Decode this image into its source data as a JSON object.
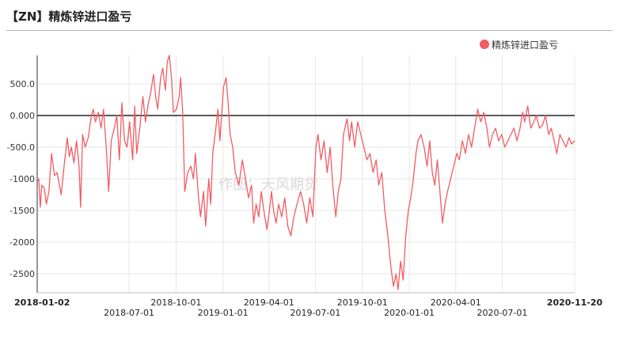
{
  "title": "【ZN】精炼锌进口盈亏",
  "watermark": "作图：天风期货",
  "chart_data": {
    "type": "line",
    "series": [
      {
        "name": "精炼锌进口盈亏",
        "color": "#f25c63",
        "points": [
          [
            "2018-01-02",
            -1050
          ],
          [
            "2018-01-05",
            -1000
          ],
          [
            "2018-01-08",
            -1450
          ],
          [
            "2018-01-11",
            -1100
          ],
          [
            "2018-01-16",
            -1150
          ],
          [
            "2018-01-20",
            -1400
          ],
          [
            "2018-01-25",
            -1200
          ],
          [
            "2018-01-30",
            -600
          ],
          [
            "2018-02-05",
            -950
          ],
          [
            "2018-02-10",
            -900
          ],
          [
            "2018-02-18",
            -1250
          ],
          [
            "2018-02-25",
            -700
          ],
          [
            "2018-03-02",
            -350
          ],
          [
            "2018-03-06",
            -650
          ],
          [
            "2018-03-10",
            -500
          ],
          [
            "2018-03-15",
            -750
          ],
          [
            "2018-03-20",
            -400
          ],
          [
            "2018-03-25",
            -800
          ],
          [
            "2018-03-28",
            -1450
          ],
          [
            "2018-04-01",
            -300
          ],
          [
            "2018-04-06",
            -500
          ],
          [
            "2018-04-12",
            -350
          ],
          [
            "2018-04-18",
            0
          ],
          [
            "2018-04-22",
            100
          ],
          [
            "2018-04-26",
            -100
          ],
          [
            "2018-05-02",
            50
          ],
          [
            "2018-05-07",
            -200
          ],
          [
            "2018-05-12",
            100
          ],
          [
            "2018-05-18",
            -600
          ],
          [
            "2018-05-22",
            -1200
          ],
          [
            "2018-05-27",
            -400
          ],
          [
            "2018-06-02",
            -200
          ],
          [
            "2018-06-07",
            0
          ],
          [
            "2018-06-12",
            -700
          ],
          [
            "2018-06-17",
            200
          ],
          [
            "2018-06-22",
            -400
          ],
          [
            "2018-06-27",
            -500
          ],
          [
            "2018-07-02",
            -100
          ],
          [
            "2018-07-08",
            -700
          ],
          [
            "2018-07-12",
            150
          ],
          [
            "2018-07-16",
            -600
          ],
          [
            "2018-07-22",
            -200
          ],
          [
            "2018-07-28",
            300
          ],
          [
            "2018-08-02",
            -100
          ],
          [
            "2018-08-08",
            200
          ],
          [
            "2018-08-12",
            350
          ],
          [
            "2018-08-18",
            650
          ],
          [
            "2018-08-22",
            300
          ],
          [
            "2018-08-26",
            100
          ],
          [
            "2018-09-01",
            600
          ],
          [
            "2018-09-05",
            750
          ],
          [
            "2018-09-10",
            400
          ],
          [
            "2018-09-14",
            850
          ],
          [
            "2018-09-18",
            950
          ],
          [
            "2018-09-22",
            600
          ],
          [
            "2018-09-26",
            50
          ],
          [
            "2018-10-02",
            100
          ],
          [
            "2018-10-07",
            300
          ],
          [
            "2018-10-10",
            600
          ],
          [
            "2018-10-14",
            50
          ],
          [
            "2018-10-18",
            -1200
          ],
          [
            "2018-10-24",
            -900
          ],
          [
            "2018-10-30",
            -800
          ],
          [
            "2018-11-04",
            -1000
          ],
          [
            "2018-11-08",
            -600
          ],
          [
            "2018-11-14",
            -1300
          ],
          [
            "2018-11-18",
            -1600
          ],
          [
            "2018-11-24",
            -1200
          ],
          [
            "2018-11-28",
            -1750
          ],
          [
            "2018-12-04",
            -1000
          ],
          [
            "2018-12-08",
            -1400
          ],
          [
            "2018-12-12",
            -600
          ],
          [
            "2018-12-18",
            -200
          ],
          [
            "2018-12-22",
            100
          ],
          [
            "2018-12-26",
            -400
          ],
          [
            "2019-01-02",
            450
          ],
          [
            "2019-01-07",
            600
          ],
          [
            "2019-01-11",
            200
          ],
          [
            "2019-01-15",
            -300
          ],
          [
            "2019-01-20",
            -500
          ],
          [
            "2019-01-25",
            -900
          ],
          [
            "2019-02-01",
            -1100
          ],
          [
            "2019-02-08",
            -700
          ],
          [
            "2019-02-14",
            -1000
          ],
          [
            "2019-02-20",
            -1300
          ],
          [
            "2019-02-26",
            -1100
          ],
          [
            "2019-03-02",
            -1700
          ],
          [
            "2019-03-07",
            -1400
          ],
          [
            "2019-03-12",
            -1600
          ],
          [
            "2019-03-17",
            -1200
          ],
          [
            "2019-03-22",
            -1500
          ],
          [
            "2019-03-28",
            -1800
          ],
          [
            "2019-04-02",
            -1500
          ],
          [
            "2019-04-06",
            -1200
          ],
          [
            "2019-04-10",
            -1500
          ],
          [
            "2019-04-15",
            -1700
          ],
          [
            "2019-04-20",
            -1400
          ],
          [
            "2019-04-26",
            -1600
          ],
          [
            "2019-05-02",
            -1300
          ],
          [
            "2019-05-08",
            -1750
          ],
          [
            "2019-05-14",
            -1900
          ],
          [
            "2019-05-20",
            -1600
          ],
          [
            "2019-05-26",
            -1400
          ],
          [
            "2019-06-02",
            -1200
          ],
          [
            "2019-06-08",
            -1400
          ],
          [
            "2019-06-14",
            -1700
          ],
          [
            "2019-06-20",
            -1300
          ],
          [
            "2019-06-26",
            -1600
          ],
          [
            "2019-07-02",
            -500
          ],
          [
            "2019-07-06",
            -300
          ],
          [
            "2019-07-12",
            -700
          ],
          [
            "2019-07-18",
            -400
          ],
          [
            "2019-07-24",
            -900
          ],
          [
            "2019-07-30",
            -500
          ],
          [
            "2019-08-04",
            -1100
          ],
          [
            "2019-08-10",
            -1600
          ],
          [
            "2019-08-15",
            -1200
          ],
          [
            "2019-08-20",
            -1000
          ],
          [
            "2019-08-25",
            -300
          ],
          [
            "2019-09-01",
            -50
          ],
          [
            "2019-09-06",
            -400
          ],
          [
            "2019-09-10",
            -100
          ],
          [
            "2019-09-16",
            -500
          ],
          [
            "2019-09-22",
            -100
          ],
          [
            "2019-09-28",
            -300
          ],
          [
            "2019-10-04",
            -500
          ],
          [
            "2019-10-10",
            -700
          ],
          [
            "2019-10-16",
            -600
          ],
          [
            "2019-10-22",
            -900
          ],
          [
            "2019-10-28",
            -700
          ],
          [
            "2019-11-02",
            -1100
          ],
          [
            "2019-11-08",
            -900
          ],
          [
            "2019-11-14",
            -1500
          ],
          [
            "2019-11-20",
            -1900
          ],
          [
            "2019-11-26",
            -2400
          ],
          [
            "2019-12-01",
            -2700
          ],
          [
            "2019-12-06",
            -2500
          ],
          [
            "2019-12-10",
            -2750
          ],
          [
            "2019-12-15",
            -2300
          ],
          [
            "2019-12-20",
            -2600
          ],
          [
            "2019-12-25",
            -1900
          ],
          [
            "2019-12-30",
            -1500
          ],
          [
            "2020-01-04",
            -1300
          ],
          [
            "2020-01-09",
            -1000
          ],
          [
            "2020-01-14",
            -600
          ],
          [
            "2020-01-18",
            -400
          ],
          [
            "2020-01-24",
            -300
          ],
          [
            "2020-01-30",
            -500
          ],
          [
            "2020-02-05",
            -800
          ],
          [
            "2020-02-10",
            -400
          ],
          [
            "2020-02-15",
            -900
          ],
          [
            "2020-02-20",
            -1100
          ],
          [
            "2020-02-25",
            -700
          ],
          [
            "2020-03-02",
            -1300
          ],
          [
            "2020-03-06",
            -1700
          ],
          [
            "2020-03-11",
            -1400
          ],
          [
            "2020-03-16",
            -1200
          ],
          [
            "2020-03-22",
            -1000
          ],
          [
            "2020-03-28",
            -800
          ],
          [
            "2020-04-03",
            -600
          ],
          [
            "2020-04-08",
            -700
          ],
          [
            "2020-04-14",
            -400
          ],
          [
            "2020-04-20",
            -600
          ],
          [
            "2020-04-26",
            -300
          ],
          [
            "2020-05-02",
            -500
          ],
          [
            "2020-05-08",
            -200
          ],
          [
            "2020-05-14",
            100
          ],
          [
            "2020-05-20",
            -100
          ],
          [
            "2020-05-26",
            50
          ],
          [
            "2020-06-01",
            -200
          ],
          [
            "2020-06-06",
            -500
          ],
          [
            "2020-06-12",
            -300
          ],
          [
            "2020-06-18",
            -200
          ],
          [
            "2020-06-24",
            -400
          ],
          [
            "2020-06-30",
            -300
          ],
          [
            "2020-07-06",
            -500
          ],
          [
            "2020-07-12",
            -400
          ],
          [
            "2020-07-18",
            -300
          ],
          [
            "2020-07-24",
            -200
          ],
          [
            "2020-07-30",
            -400
          ],
          [
            "2020-08-05",
            -200
          ],
          [
            "2020-08-10",
            50
          ],
          [
            "2020-08-14",
            -100
          ],
          [
            "2020-08-20",
            150
          ],
          [
            "2020-08-26",
            -200
          ],
          [
            "2020-09-01",
            -100
          ],
          [
            "2020-09-06",
            0
          ],
          [
            "2020-09-12",
            -200
          ],
          [
            "2020-09-18",
            -150
          ],
          [
            "2020-09-24",
            0
          ],
          [
            "2020-09-30",
            -300
          ],
          [
            "2020-10-05",
            -200
          ],
          [
            "2020-10-11",
            -400
          ],
          [
            "2020-10-16",
            -600
          ],
          [
            "2020-10-22",
            -300
          ],
          [
            "2020-10-28",
            -400
          ],
          [
            "2020-11-03",
            -500
          ],
          [
            "2020-11-09",
            -350
          ],
          [
            "2020-11-14",
            -450
          ],
          [
            "2020-11-20",
            -400
          ]
        ]
      }
    ],
    "x_start": "2018-01-02",
    "x_end": "2020-11-20",
    "x_ticks": [
      {
        "date": "2018-01-02",
        "label": "2018-01-02",
        "row": 1,
        "bold": true
      },
      {
        "date": "2018-07-01",
        "label": "2018-07-01",
        "row": 2,
        "bold": false
      },
      {
        "date": "2018-10-01",
        "label": "2018-10-01",
        "row": 1,
        "bold": false
      },
      {
        "date": "2019-01-01",
        "label": "2019-01-01",
        "row": 2,
        "bold": false
      },
      {
        "date": "2019-04-01",
        "label": "2019-04-01",
        "row": 1,
        "bold": false
      },
      {
        "date": "2019-07-01",
        "label": "2019-07-01",
        "row": 2,
        "bold": false
      },
      {
        "date": "2019-10-01",
        "label": "2019-10-01",
        "row": 1,
        "bold": false
      },
      {
        "date": "2020-01-01",
        "label": "2020-01-01",
        "row": 2,
        "bold": false
      },
      {
        "date": "2020-04-01",
        "label": "2020-04-01",
        "row": 1,
        "bold": false
      },
      {
        "date": "2020-07-01",
        "label": "2020-07-01",
        "row": 2,
        "bold": false
      },
      {
        "date": "2020-11-20",
        "label": "2020-11-20",
        "row": 1,
        "bold": true
      }
    ],
    "y_ticks": [
      {
        "value": 500,
        "label": "500.0"
      },
      {
        "value": 0,
        "label": "0.000"
      },
      {
        "value": -500,
        "label": "-500.0"
      },
      {
        "value": -1000,
        "label": "-1000"
      },
      {
        "value": -1500,
        "label": "-1500"
      },
      {
        "value": -2000,
        "label": "-2000"
      },
      {
        "value": -2500,
        "label": "-2500"
      }
    ],
    "ylim": [
      -2800,
      950
    ],
    "grid": true,
    "zero_line": true,
    "legend": "top-right"
  }
}
